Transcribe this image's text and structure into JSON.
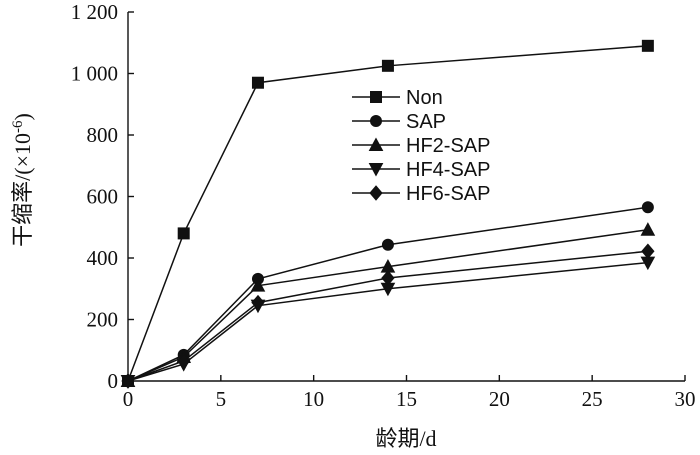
{
  "chart_data": {
    "type": "line",
    "xlabel": "龄期/d",
    "ylabel": "干缩率/(×10",
    "ylabel_sup": "-6",
    "ylabel_tail": ")",
    "xlim": [
      0,
      30
    ],
    "ylim": [
      0,
      1200
    ],
    "xticks": [
      0,
      5,
      10,
      15,
      20,
      25,
      30
    ],
    "xtick_labels": [
      "0",
      "5",
      "10",
      "15",
      "20",
      "25",
      "30"
    ],
    "yticks": [
      0,
      200,
      400,
      600,
      800,
      1000,
      1200
    ],
    "ytick_labels": [
      "0",
      "200",
      "400",
      "600",
      "800",
      "1 000",
      "1 200"
    ],
    "grid": false,
    "legend_position": "center",
    "x": [
      0,
      3,
      7,
      14,
      28
    ],
    "series": [
      {
        "name": "Non",
        "marker": "square",
        "values": [
          0,
          480,
          970,
          1025,
          1090
        ]
      },
      {
        "name": "SAP",
        "marker": "circle",
        "values": [
          0,
          85,
          332,
          443,
          565
        ]
      },
      {
        "name": "HF2-SAP",
        "marker": "triangle-up",
        "values": [
          0,
          78,
          310,
          372,
          492
        ]
      },
      {
        "name": "HF4-SAP",
        "marker": "triangle-down",
        "values": [
          0,
          55,
          245,
          300,
          385
        ]
      },
      {
        "name": "HF6-SAP",
        "marker": "diamond",
        "values": [
          0,
          65,
          255,
          335,
          422
        ]
      }
    ]
  }
}
